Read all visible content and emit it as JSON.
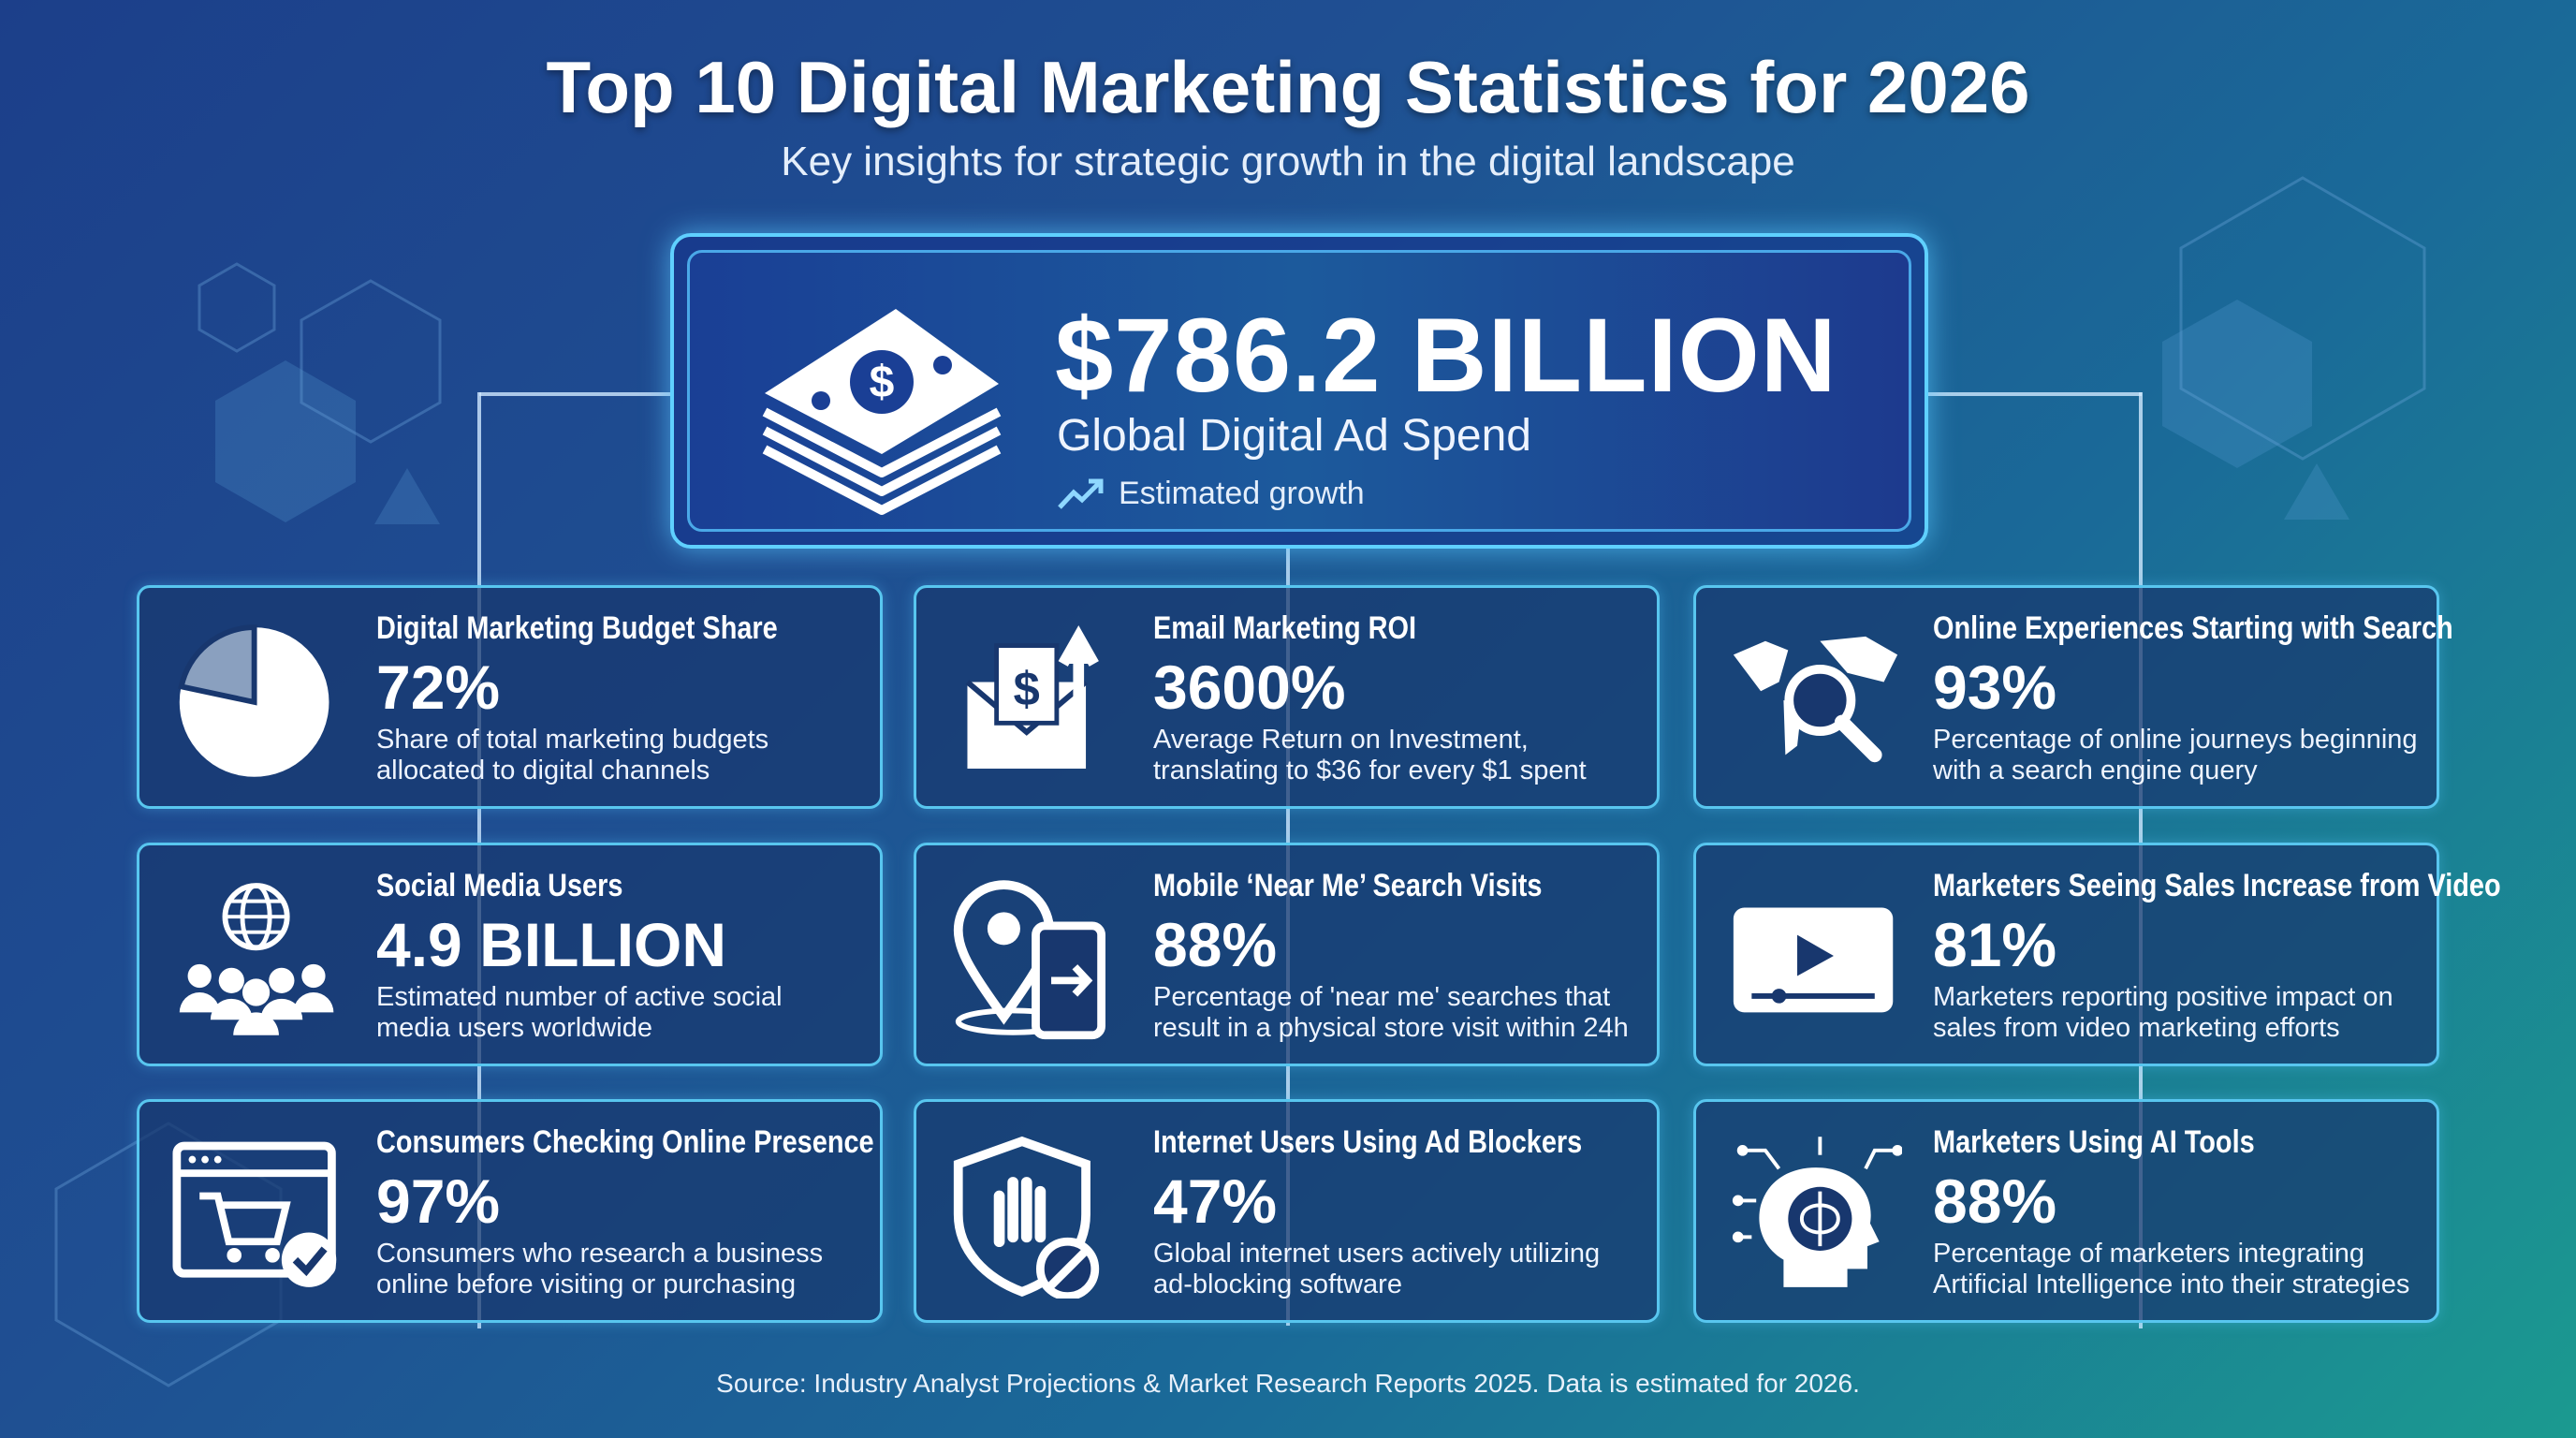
{
  "header": {
    "title": "Top 10 Digital Marketing Statistics for 2026",
    "subtitle": "Key insights for strategic growth in the digital landscape"
  },
  "hero": {
    "value": "$786.2 BILLION",
    "label": "Global Digital Ad Spend",
    "growth": "Estimated growth",
    "icon": "money-stack-icon"
  },
  "cards": [
    {
      "title": "Digital Marketing Budget Share",
      "value": "72%",
      "desc": "Share of total marketing budgets allocated to digital channels",
      "icon": "pie-chart-icon"
    },
    {
      "title": "Email Marketing ROI",
      "value": "3600%",
      "desc": "Average Return on Investment, translating to $36 for every $1 spent",
      "icon": "email-dollar-icon"
    },
    {
      "title": "Online Experiences Starting with Search",
      "value": "93%",
      "desc": "Percentage of online journeys beginning with a search engine query",
      "icon": "world-search-icon"
    },
    {
      "title": "Social Media Users",
      "value": "4.9 BILLION",
      "desc": "Estimated number of active social media users worldwide",
      "icon": "globe-people-icon"
    },
    {
      "title": "Mobile ‘Near Me’ Search Visits",
      "value": "88%",
      "desc": "Percentage of 'near me' searches that result in a physical store visit within 24h",
      "icon": "location-phone-icon"
    },
    {
      "title": "Marketers Seeing Sales Increase from Video",
      "value": "81%",
      "desc": "Marketers reporting positive impact on sales from video marketing efforts",
      "icon": "video-player-icon"
    },
    {
      "title": "Consumers Checking Online Presence",
      "value": "97%",
      "desc": "Consumers who research a business online before visiting or purchasing",
      "icon": "browser-cart-check-icon"
    },
    {
      "title": "Internet Users Using Ad Blockers",
      "value": "47%",
      "desc": "Global internet users actively utilizing ad-blocking software",
      "icon": "shield-block-icon"
    },
    {
      "title": "Marketers Using AI Tools",
      "value": "88%",
      "desc": "Percentage of marketers integrating Artificial Intelligence into their strategies",
      "icon": "ai-brain-head-icon"
    }
  ],
  "footer": {
    "source": "Source: Industry Analyst Projections & Market Research Reports 2025. Data is estimated for 2026."
  },
  "colors": {
    "accent": "#58c6ef",
    "hero_bg": "#1a3f95",
    "card_bg": "#18376e"
  }
}
